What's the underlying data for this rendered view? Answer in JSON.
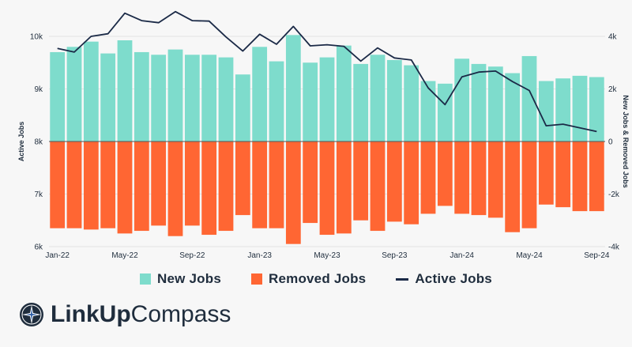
{
  "chart_data": {
    "type": "bar",
    "categories": [
      "Jan-22",
      "Feb-22",
      "Mar-22",
      "Apr-22",
      "May-22",
      "Jun-22",
      "Jul-22",
      "Aug-22",
      "Sep-22",
      "Oct-22",
      "Nov-22",
      "Dec-22",
      "Jan-23",
      "Feb-23",
      "Mar-23",
      "Apr-23",
      "May-23",
      "Jun-23",
      "Jul-23",
      "Aug-23",
      "Sep-23",
      "Oct-23",
      "Nov-23",
      "Dec-23",
      "Jan-24",
      "Feb-24",
      "Mar-24",
      "Apr-24",
      "May-24",
      "Jun-24",
      "Jul-24",
      "Aug-24",
      "Sep-24"
    ],
    "x_tick_labels": [
      "Jan-22",
      "May-22",
      "Sep-22",
      "Jan-23",
      "May-23",
      "Sep-23",
      "Jan-24",
      "May-24",
      "Sep-24"
    ],
    "series": [
      {
        "name": "New Jobs",
        "axis": "right",
        "color": "#7edccc",
        "values": [
          3400,
          3600,
          3800,
          3350,
          3850,
          3400,
          3300,
          3500,
          3300,
          3300,
          3200,
          2550,
          3600,
          3050,
          4050,
          3000,
          3200,
          3650,
          2950,
          3300,
          3100,
          2900,
          2300,
          2200,
          3150,
          2950,
          2850,
          2600,
          3250,
          2300,
          2400,
          2500,
          2450
        ]
      },
      {
        "name": "Removed Jobs",
        "axis": "right",
        "color": "#ff6633",
        "values": [
          -3300,
          -3300,
          -3350,
          -3300,
          -3500,
          -3400,
          -3200,
          -3600,
          -3200,
          -3550,
          -3400,
          -2800,
          -3300,
          -3300,
          -3900,
          -3100,
          -3550,
          -3500,
          -3000,
          -3400,
          -3050,
          -3150,
          -2750,
          -2450,
          -2750,
          -2800,
          -2900,
          -3450,
          -3300,
          -2400,
          -2500,
          -2650,
          -2650
        ]
      },
      {
        "name": "Active Jobs",
        "axis": "left",
        "color": "#1b2a47",
        "values": [
          9770,
          9700,
          10000,
          10050,
          10440,
          10300,
          10260,
          10470,
          10300,
          10290,
          9990,
          9720,
          10040,
          9850,
          10190,
          9820,
          9840,
          9810,
          9530,
          9780,
          9590,
          9550,
          9020,
          8700,
          9230,
          9320,
          9340,
          9140,
          8970,
          8300,
          8330,
          8260,
          8190
        ]
      }
    ],
    "ylabel_left": "Active Jobs",
    "ylabel_right": "New Jobs & Removed Jobs",
    "ylim_left": [
      6000,
      10000
    ],
    "ylim_right": [
      -4000,
      4000
    ],
    "yticks_left": [
      "6k",
      "7k",
      "8k",
      "9k",
      "10k"
    ],
    "yticks_right": [
      "-4k",
      "-2k",
      "0",
      "2k",
      "4k"
    ],
    "grid": "horizontal",
    "legend_position": "bottom"
  },
  "legend": {
    "new_jobs": "New Jobs",
    "removed_jobs": "Removed Jobs",
    "active_jobs": "Active Jobs"
  },
  "brand": {
    "name_bold": "LinkUp",
    "name_light": "Compass",
    "logo_icon": "compass-star-icon"
  }
}
